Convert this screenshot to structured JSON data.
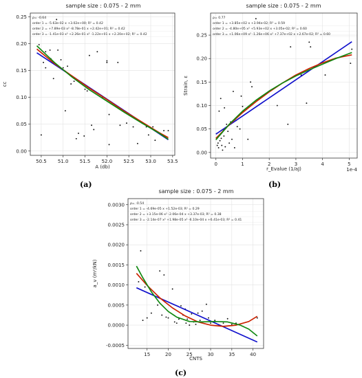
{
  "captions": [
    "(a)",
    "(b)",
    "(c)"
  ],
  "chart_data": [
    {
      "type": "scatter",
      "title": "sample size : 0.075 - 2 mm",
      "xlabel": "A (db)",
      "ylabel": "cc",
      "xlim": [
        50.25,
        53.55
      ],
      "ylim": [
        -0.008,
        0.257
      ],
      "xticks": [
        "50.5",
        "51.0",
        "51.5",
        "52.0",
        "52.5",
        "53.0",
        "53.5"
      ],
      "xtick_values": [
        50.5,
        51.0,
        51.5,
        52.0,
        52.5,
        53.0,
        53.5
      ],
      "yticks": [
        "0.00",
        "0.05",
        "0.10",
        "0.15",
        "0.20",
        "0.25"
      ],
      "ytick_values": [
        0.0,
        0.05,
        0.1,
        0.15,
        0.2,
        0.25
      ],
      "grid": true,
      "annotations": [
        {
          "text": "ρ= -0.64",
          "color": "#222222"
        },
        {
          "text": "order 1 = -5.63e-02 x +3.02e+00;  R² = 0.42",
          "color": "#1111cc"
        },
        {
          "text": "order 2 = +7.89e-03 x² -8.78e-01 x +2.42e+01;  R² = 0.42",
          "color": "#cc2200"
        },
        {
          "text": "order 3 = -1.41e-03 x³ +2.26e-01 x² -1.22e+01 x +2.20e+02;  R² = 0.42",
          "color": "#118811"
        }
      ],
      "points": [
        [
          50.45,
          0.198
        ],
        [
          50.6,
          0.185
        ],
        [
          50.7,
          0.188
        ],
        [
          50.72,
          0.172
        ],
        [
          50.78,
          0.135
        ],
        [
          50.85,
          0.245
        ],
        [
          50.88,
          0.188
        ],
        [
          50.95,
          0.17
        ],
        [
          51.0,
          0.155
        ],
        [
          51.05,
          0.148
        ],
        [
          51.1,
          0.158
        ],
        [
          51.18,
          0.125
        ],
        [
          51.25,
          0.13
        ],
        [
          51.5,
          0.115
        ],
        [
          51.55,
          0.112
        ],
        [
          51.6,
          0.178
        ],
        [
          51.65,
          0.048
        ],
        [
          51.7,
          0.04
        ],
        [
          51.78,
          0.185
        ],
        [
          51.9,
          0.1
        ],
        [
          52.0,
          0.165
        ],
        [
          52.0,
          0.168
        ],
        [
          52.05,
          0.068
        ],
        [
          52.25,
          0.165
        ],
        [
          52.3,
          0.048
        ],
        [
          52.45,
          0.052
        ],
        [
          52.6,
          0.045
        ],
        [
          52.7,
          0.014
        ],
        [
          52.9,
          0.045
        ],
        [
          52.95,
          0.03
        ],
        [
          53.05,
          0.045
        ],
        [
          53.1,
          0.02
        ],
        [
          53.3,
          0.038
        ],
        [
          53.4,
          0.038
        ],
        [
          51.05,
          0.075
        ],
        [
          50.5,
          0.03
        ],
        [
          50.55,
          0.165
        ],
        [
          50.6,
          0.155
        ],
        [
          52.05,
          0.012
        ],
        [
          51.3,
          0.023
        ],
        [
          51.48,
          0.028
        ],
        [
          51.35,
          0.033
        ]
      ],
      "series": [
        {
          "name": "order 1",
          "color": "#1111cc",
          "x": [
            50.4,
            53.4
          ],
          "y": [
            0.183,
            0.021
          ]
        },
        {
          "name": "order 2",
          "color": "#cc2200",
          "x": [
            50.4,
            50.8,
            51.2,
            51.6,
            52.0,
            52.4,
            52.8,
            53.2,
            53.4
          ],
          "y": [
            0.19,
            0.163,
            0.14,
            0.117,
            0.096,
            0.074,
            0.054,
            0.034,
            0.025
          ]
        },
        {
          "name": "order 3",
          "color": "#118811",
          "x": [
            50.4,
            50.8,
            51.2,
            51.6,
            52.0,
            52.4,
            52.8,
            53.2,
            53.4
          ],
          "y": [
            0.196,
            0.165,
            0.138,
            0.114,
            0.093,
            0.072,
            0.052,
            0.033,
            0.022
          ]
        }
      ]
    },
    {
      "type": "scatter",
      "title": "sample size : 0.075 - 2 mm",
      "xlabel": "r_Evalue (1/aJ)",
      "ylabel": "Strain, ε",
      "x_multiplier": "1e-4",
      "xlim": [
        -0.2,
        5.3
      ],
      "ylim": [
        -0.012,
        0.297
      ],
      "xticks": [
        "0",
        "1",
        "2",
        "3",
        "4",
        "5"
      ],
      "xtick_values": [
        0,
        1,
        2,
        3,
        4,
        5
      ],
      "yticks": [
        "0.00",
        "0.05",
        "0.10",
        "0.15",
        "0.20",
        "0.25"
      ],
      "ytick_values": [
        0.0,
        0.05,
        0.1,
        0.15,
        0.2,
        0.25
      ],
      "grid": true,
      "annotations": [
        {
          "text": "ρ= 0.77",
          "color": "#222222"
        },
        {
          "text": "order 1 = +3.85e+02 x +3.94e-02;  R² = 0.59",
          "color": "#1111cc"
        },
        {
          "text": "order 2 = -4.80e+05 x² +5.93e+02 x +3.05e-02;  R² = 0.60",
          "color": "#cc2200"
        },
        {
          "text": "order 3 = +1.06e+09 x³ -1.26e+06 x² +7.37e+02 x +2.67e-02;  R² = 0.60",
          "color": "#118811"
        }
      ],
      "points": [
        [
          0.05,
          0.015
        ],
        [
          0.08,
          0.02
        ],
        [
          0.1,
          0.01
        ],
        [
          0.12,
          0.088
        ],
        [
          0.15,
          0.025
        ],
        [
          0.18,
          0.115
        ],
        [
          0.2,
          0.03
        ],
        [
          0.22,
          0.015
        ],
        [
          0.25,
          0.005
        ],
        [
          0.3,
          0.035
        ],
        [
          0.32,
          0.095
        ],
        [
          0.35,
          0.012
        ],
        [
          0.4,
          0.06
        ],
        [
          0.45,
          0.045
        ],
        [
          0.5,
          0.02
        ],
        [
          0.55,
          0.065
        ],
        [
          0.6,
          0.028
        ],
        [
          0.65,
          0.13
        ],
        [
          0.7,
          0.01
        ],
        [
          0.75,
          0.068
        ],
        [
          0.8,
          0.055
        ],
        [
          0.9,
          0.05
        ],
        [
          1.0,
          0.098
        ],
        [
          1.2,
          0.028
        ],
        [
          1.3,
          0.15
        ],
        [
          1.35,
          0.14
        ],
        [
          1.5,
          0.285
        ],
        [
          2.3,
          0.1
        ],
        [
          2.7,
          0.06
        ],
        [
          2.8,
          0.225
        ],
        [
          3.2,
          0.165
        ],
        [
          3.4,
          0.105
        ],
        [
          3.5,
          0.235
        ],
        [
          3.55,
          0.225
        ],
        [
          4.1,
          0.165
        ],
        [
          5.05,
          0.19
        ],
        [
          5.1,
          0.22
        ],
        [
          0.02,
          0.04
        ],
        [
          0.28,
          0.048
        ],
        [
          0.95,
          0.12
        ]
      ],
      "series": [
        {
          "name": "order 1",
          "color": "#1111cc",
          "x": [
            0.0,
            5.1
          ],
          "y": [
            0.039,
            0.236
          ]
        },
        {
          "name": "order 2",
          "color": "#cc2200",
          "x": [
            0.0,
            0.5,
            1.0,
            1.5,
            2.0,
            2.5,
            3.0,
            3.5,
            4.0,
            4.5,
            5.1
          ],
          "y": [
            0.03,
            0.059,
            0.085,
            0.108,
            0.129,
            0.148,
            0.165,
            0.179,
            0.191,
            0.201,
            0.208
          ]
        },
        {
          "name": "order 3",
          "color": "#118811",
          "x": [
            0.0,
            0.5,
            1.0,
            1.5,
            2.0,
            2.5,
            3.0,
            3.5,
            4.0,
            4.5,
            5.1
          ],
          "y": [
            0.027,
            0.06,
            0.088,
            0.111,
            0.131,
            0.148,
            0.163,
            0.176,
            0.188,
            0.2,
            0.213
          ]
        }
      ]
    },
    {
      "type": "scatter",
      "title": "sample size : 0.075 - 2 mm",
      "xlabel": "CNTS",
      "ylabel": "a_v (m²/kN)",
      "xlim": [
        10.5,
        42.5
      ],
      "ylim": [
        -0.00058,
        0.00315
      ],
      "xticks": [
        "15",
        "20",
        "25",
        "30",
        "35",
        "40"
      ],
      "xtick_values": [
        15,
        20,
        25,
        30,
        35,
        40
      ],
      "yticks": [
        "-0.0005",
        "0.0000",
        "0.0005",
        "0.0010",
        "0.0015",
        "0.0020",
        "0.0025",
        "0.0030"
      ],
      "ytick_values": [
        -0.0005,
        0.0,
        0.0005,
        0.001,
        0.0015,
        0.002,
        0.0025,
        0.003
      ],
      "grid": true,
      "annotations": [
        {
          "text": "ρ= -0.54",
          "color": "#222222"
        },
        {
          "text": "order 1 = -4.69e-05 x +1.52e-03;  R² = 0.29",
          "color": "#1111cc"
        },
        {
          "text": "order 2 = +3.15e-06 x² -2.06e-04 x +3.37e-03;  R² = 0.38",
          "color": "#cc2200"
        },
        {
          "text": "order 3 = -2.14e-07 x³ +1.98e-05 x² -6.10e-04 x +6.41e-03;  R² = 0.41",
          "color": "#118811"
        }
      ],
      "points": [
        [
          13.0,
          0.00108
        ],
        [
          13.5,
          0.00185
        ],
        [
          14.0,
          0.00012
        ],
        [
          14.5,
          0.00095
        ],
        [
          15.0,
          0.00018
        ],
        [
          16.0,
          0.0003
        ],
        [
          17.5,
          0.0005
        ],
        [
          18.0,
          0.00135
        ],
        [
          19.0,
          0.00125
        ],
        [
          19.5,
          0.0002
        ],
        [
          20.0,
          0.00018
        ],
        [
          21.0,
          0.0009
        ],
        [
          21.5,
          8e-05
        ],
        [
          22.0,
          5e-05
        ],
        [
          22.5,
          0.00015
        ],
        [
          23.0,
          0.00048
        ],
        [
          23.5,
          0.00025
        ],
        [
          24.0,
          0.0004
        ],
        [
          24.5,
          0.00015
        ],
        [
          25.0,
          0.0
        ],
        [
          25.5,
          0.00028
        ],
        [
          26.0,
          8e-05
        ],
        [
          27.0,
          0.0003
        ],
        [
          27.5,
          0.00012
        ],
        [
          28.0,
          0.00035
        ],
        [
          29.0,
          0.00052
        ],
        [
          30.0,
          5e-05
        ],
        [
          31.0,
          0.00012
        ],
        [
          32.0,
          0.0
        ],
        [
          33.0,
          5e-05
        ],
        [
          34.0,
          0.00016
        ],
        [
          35.0,
          2e-05
        ],
        [
          36.0,
          5e-05
        ],
        [
          41.0,
          0.00018
        ],
        [
          18.5,
          0.00025
        ],
        [
          24.2,
          5e-05
        ],
        [
          26.5,
          2e-05
        ],
        [
          29.5,
          0.00018
        ]
      ],
      "series": [
        {
          "name": "order 1",
          "color": "#1111cc",
          "x": [
            12.5,
            41.0
          ],
          "y": [
            0.00093,
            -0.00042
          ]
        },
        {
          "name": "order 2",
          "color": "#cc2200",
          "x": [
            12.5,
            15,
            18,
            21,
            24,
            27,
            30,
            33,
            36,
            39,
            41.0
          ],
          "y": [
            0.00129,
            0.00099,
            0.00068,
            0.00043,
            0.00023,
            8e-05,
            0.0,
            -3e-05,
            0.0,
            9e-05,
            0.00022
          ]
        },
        {
          "name": "order 3",
          "color": "#118811",
          "x": [
            12.5,
            14,
            16,
            18,
            20,
            22,
            25,
            28,
            31,
            34,
            37,
            39,
            41.0
          ],
          "y": [
            0.00147,
            0.00118,
            0.00083,
            0.00055,
            0.00034,
            0.0002,
            9e-05,
            8e-05,
            9e-05,
            8e-05,
            0.0,
            -0.0001,
            -0.00027
          ]
        }
      ]
    }
  ]
}
